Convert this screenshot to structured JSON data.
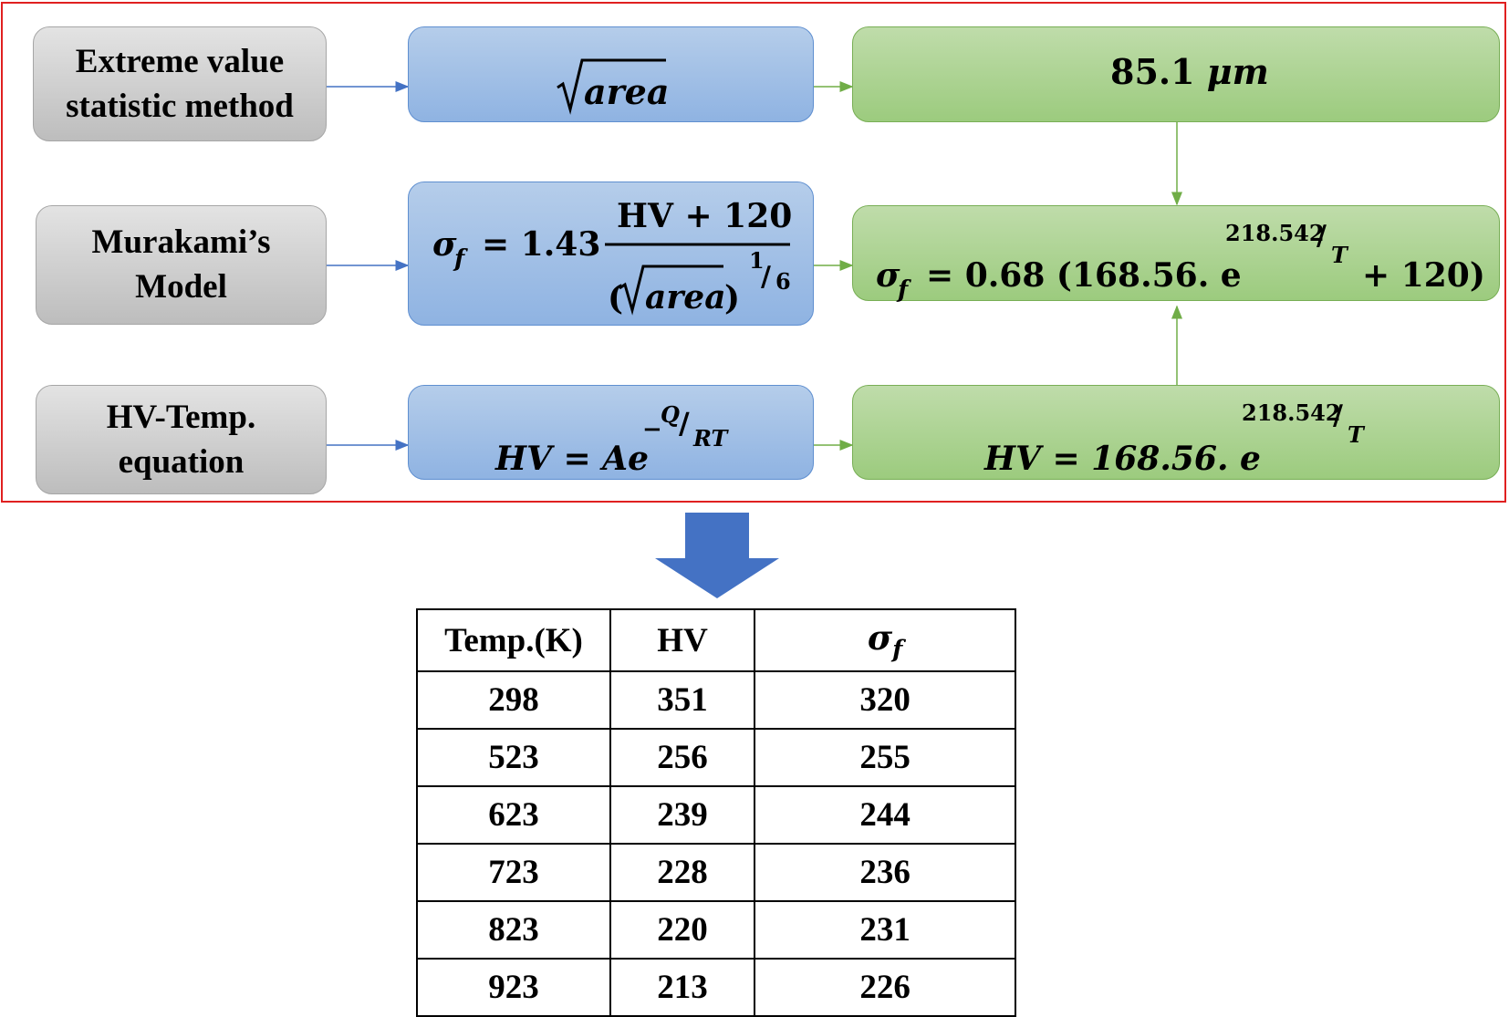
{
  "inputs": {
    "extreme_value_line1": "Extreme value",
    "extreme_value_line2": "statistic method",
    "murakami_line1": "Murakami’s",
    "murakami_line2": "Model",
    "hv_temp_line1": "HV-Temp.",
    "hv_temp_line2": "equation"
  },
  "formulas": {
    "sqrt_area": "area",
    "area_value": "85.1",
    "area_unit": "μm",
    "murakami_lhs": "σ",
    "murakami_sub": "f",
    "murakami_eq": "= 1.43",
    "murakami_numerator": "HV + 120",
    "murakami_denominator_area": "area",
    "murakami_exp_num": "1",
    "murakami_exp_den": "6",
    "sigma_lhs": "σ",
    "sigma_sub": "f",
    "sigma_mid": "= 0.68 (168.56. e",
    "sigma_end": "+ 120)",
    "sigma_exp_num": "218.542",
    "sigma_exp_den": "T",
    "hv_general_lhs": "HV = Ae",
    "hv_general_exp_prefix": "−",
    "hv_general_exp_num": "Q",
    "hv_general_exp_den": "RT",
    "hv_fitted_lhs": "HV = 168.56. e",
    "hv_fitted_exp_num": "218.542",
    "hv_fitted_exp_den": "T"
  },
  "table": {
    "headers": [
      "Temp.(K)",
      "HV",
      "σ",
      "f"
    ],
    "rows": [
      [
        "298",
        "351",
        "320"
      ],
      [
        "523",
        "256",
        "255"
      ],
      [
        "623",
        "239",
        "244"
      ],
      [
        "723",
        "228",
        "236"
      ],
      [
        "823",
        "220",
        "231"
      ],
      [
        "923",
        "213",
        "226"
      ]
    ]
  },
  "colors": {
    "frame": "#e02020",
    "gray_box": "#c8c8c8",
    "blue_box": "#9dbde6",
    "green_box": "#a9d18e",
    "blue_connector": "#4472c4",
    "green_connector": "#70ad47",
    "down_arrow": "#4472c4"
  }
}
